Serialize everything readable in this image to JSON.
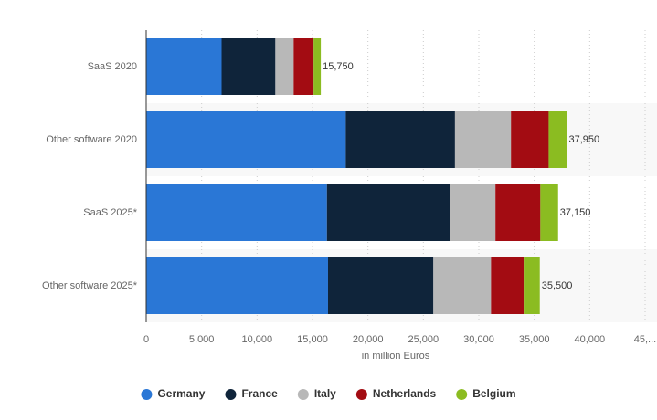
{
  "chart_data": {
    "type": "stacked-bar-horizontal",
    "categories": [
      "SaaS 2020",
      "Other software 2020",
      "SaaS 2025*",
      "Other software 2025*"
    ],
    "series": [
      {
        "name": "Germany",
        "color": "#2a77d6",
        "values": [
          6800,
          18000,
          16300,
          16400
        ]
      },
      {
        "name": "France",
        "color": "#0f243a",
        "values": [
          4850,
          9850,
          11100,
          9500
        ]
      },
      {
        "name": "Italy",
        "color": "#b8b8b8",
        "values": [
          1650,
          5050,
          4100,
          5200
        ]
      },
      {
        "name": "Netherlands",
        "color": "#a30c12",
        "values": [
          1800,
          3400,
          4050,
          2950
        ]
      },
      {
        "name": "Belgium",
        "color": "#8bbc21",
        "values": [
          650,
          1650,
          1600,
          1450
        ]
      }
    ],
    "total_labels": [
      "15,750",
      "37,950",
      "37,150",
      "35,500"
    ],
    "xlabel": "in million Euros",
    "xlim": [
      0,
      45000
    ],
    "xticks": [
      0,
      {
        "value": 5000,
        "label": "5,000"
      },
      {
        "value": 10000,
        "label": "10,000"
      },
      {
        "value": 15000,
        "label": "15,000"
      },
      {
        "value": 20000,
        "label": "20,000"
      },
      {
        "value": 25000,
        "label": "25,000"
      },
      {
        "value": 30000,
        "label": "30,000"
      },
      {
        "value": 35000,
        "label": "35,000"
      },
      {
        "value": 40000,
        "label": "40,000"
      },
      {
        "value": 45000,
        "label": "45,..."
      }
    ],
    "grid": true,
    "legend": "bottom"
  }
}
